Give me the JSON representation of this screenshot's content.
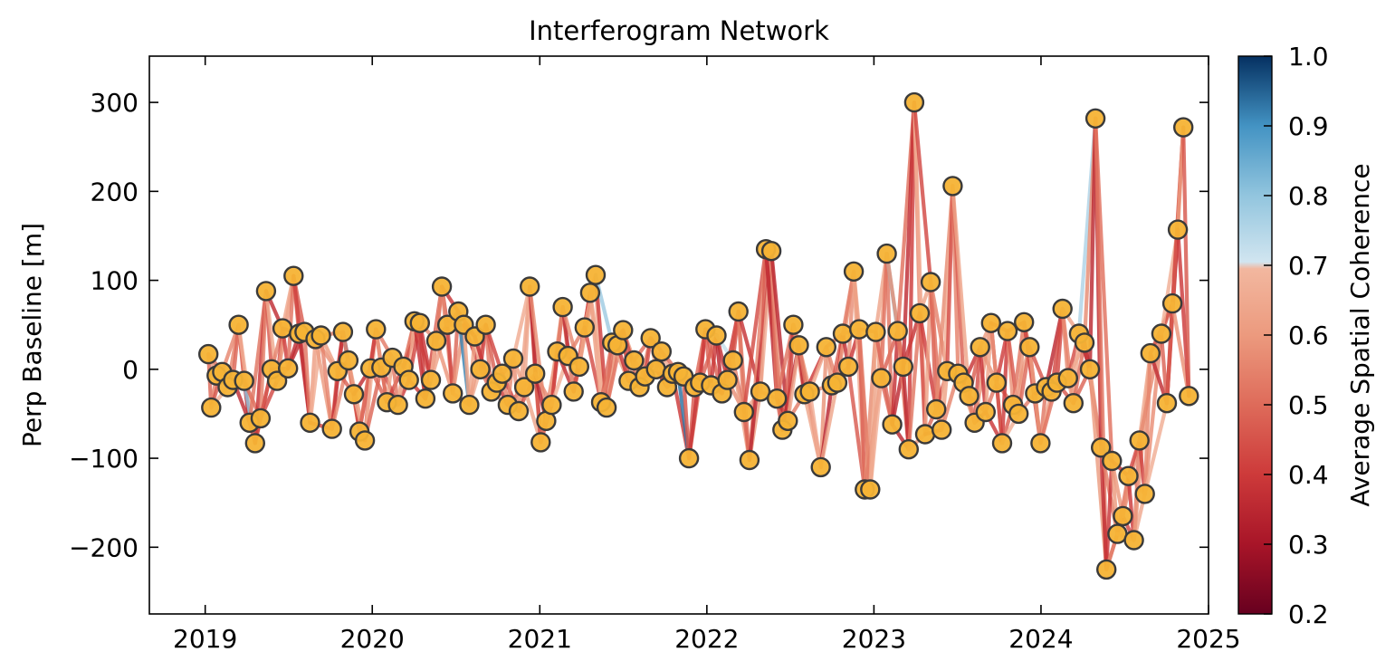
{
  "chart_data": {
    "type": "network",
    "title": "Interferogram Network",
    "xlabel": "",
    "ylabel": "Perp Baseline [m]",
    "x_axis": {
      "type": "date",
      "lim": [
        "2018-09-01",
        "2025-01-01"
      ],
      "ticks": [
        "2019",
        "2020",
        "2021",
        "2022",
        "2023",
        "2024",
        "2025"
      ]
    },
    "y_axis": {
      "lim": [
        -275,
        352
      ],
      "ticks": [
        -200,
        -100,
        0,
        100,
        200,
        300
      ],
      "tick_labels": [
        "−200",
        "−100",
        "0",
        "100",
        "200",
        "300"
      ]
    },
    "colorbar": {
      "label": "Average Spatial Coherence",
      "range": [
        0.2,
        1.0
      ],
      "ticks": [
        "0.2",
        "0.3",
        "0.4",
        "0.5",
        "0.6",
        "0.7",
        "0.8",
        "0.9",
        "1.0"
      ],
      "stops": [
        {
          "v": 0.2,
          "color": "#67001f"
        },
        {
          "v": 0.3,
          "color": "#a81528"
        },
        {
          "v": 0.4,
          "color": "#cd3a3a"
        },
        {
          "v": 0.5,
          "color": "#de6b5a"
        },
        {
          "v": 0.6,
          "color": "#ec9a7e"
        },
        {
          "v": 0.695,
          "color": "#f2b79f"
        },
        {
          "v": 0.705,
          "color": "#d1e5f0"
        },
        {
          "v": 0.8,
          "color": "#92c5de"
        },
        {
          "v": 0.9,
          "color": "#4393c3"
        },
        {
          "v": 1.0,
          "color": "#053061"
        }
      ]
    },
    "acquisitions": [
      {
        "date": "2019-01-08",
        "bperp": 17
      },
      {
        "date": "2019-01-14",
        "bperp": -43
      },
      {
        "date": "2019-01-26",
        "bperp": -7
      },
      {
        "date": "2019-02-07",
        "bperp": -3
      },
      {
        "date": "2019-02-19",
        "bperp": -20
      },
      {
        "date": "2019-03-03",
        "bperp": -12
      },
      {
        "date": "2019-03-15",
        "bperp": 50
      },
      {
        "date": "2019-03-27",
        "bperp": -13
      },
      {
        "date": "2019-04-08",
        "bperp": -60
      },
      {
        "date": "2019-04-20",
        "bperp": -83
      },
      {
        "date": "2019-05-02",
        "bperp": -55
      },
      {
        "date": "2019-05-14",
        "bperp": 88
      },
      {
        "date": "2019-05-26",
        "bperp": 0
      },
      {
        "date": "2019-06-07",
        "bperp": -13
      },
      {
        "date": "2019-06-19",
        "bperp": 46
      },
      {
        "date": "2019-07-01",
        "bperp": 1
      },
      {
        "date": "2019-07-13",
        "bperp": 105
      },
      {
        "date": "2019-07-25",
        "bperp": 40
      },
      {
        "date": "2019-08-06",
        "bperp": 42
      },
      {
        "date": "2019-08-18",
        "bperp": -60
      },
      {
        "date": "2019-08-30",
        "bperp": 34
      },
      {
        "date": "2019-09-11",
        "bperp": 38
      },
      {
        "date": "2019-10-05",
        "bperp": -67
      },
      {
        "date": "2019-10-17",
        "bperp": -2
      },
      {
        "date": "2019-10-29",
        "bperp": 42
      },
      {
        "date": "2019-11-10",
        "bperp": 10
      },
      {
        "date": "2019-11-22",
        "bperp": -28
      },
      {
        "date": "2019-12-04",
        "bperp": -70
      },
      {
        "date": "2019-12-16",
        "bperp": -80
      },
      {
        "date": "2019-12-28",
        "bperp": 1
      },
      {
        "date": "2020-01-09",
        "bperp": 45
      },
      {
        "date": "2020-01-21",
        "bperp": 2
      },
      {
        "date": "2020-02-02",
        "bperp": -37
      },
      {
        "date": "2020-02-14",
        "bperp": 13
      },
      {
        "date": "2020-02-26",
        "bperp": -40
      },
      {
        "date": "2020-03-09",
        "bperp": 3
      },
      {
        "date": "2020-03-21",
        "bperp": -12
      },
      {
        "date": "2020-04-02",
        "bperp": 54
      },
      {
        "date": "2020-04-14",
        "bperp": 52
      },
      {
        "date": "2020-04-26",
        "bperp": -33
      },
      {
        "date": "2020-05-08",
        "bperp": -12
      },
      {
        "date": "2020-05-20",
        "bperp": 32
      },
      {
        "date": "2020-06-01",
        "bperp": 93
      },
      {
        "date": "2020-06-13",
        "bperp": 50
      },
      {
        "date": "2020-06-25",
        "bperp": -27
      },
      {
        "date": "2020-07-07",
        "bperp": 65
      },
      {
        "date": "2020-07-19",
        "bperp": 50
      },
      {
        "date": "2020-07-31",
        "bperp": -40
      },
      {
        "date": "2020-08-12",
        "bperp": 37
      },
      {
        "date": "2020-08-24",
        "bperp": 0
      },
      {
        "date": "2020-09-05",
        "bperp": 50
      },
      {
        "date": "2020-09-17",
        "bperp": -25
      },
      {
        "date": "2020-09-29",
        "bperp": -15
      },
      {
        "date": "2020-10-11",
        "bperp": -5
      },
      {
        "date": "2020-10-23",
        "bperp": -40
      },
      {
        "date": "2020-11-04",
        "bperp": 12
      },
      {
        "date": "2020-11-16",
        "bperp": -47
      },
      {
        "date": "2020-11-28",
        "bperp": -20
      },
      {
        "date": "2020-12-10",
        "bperp": 93
      },
      {
        "date": "2020-12-22",
        "bperp": -5
      },
      {
        "date": "2021-01-03",
        "bperp": -82
      },
      {
        "date": "2021-01-15",
        "bperp": -58
      },
      {
        "date": "2021-01-27",
        "bperp": -40
      },
      {
        "date": "2021-02-08",
        "bperp": 20
      },
      {
        "date": "2021-02-20",
        "bperp": 70
      },
      {
        "date": "2021-03-04",
        "bperp": 15
      },
      {
        "date": "2021-03-16",
        "bperp": -25
      },
      {
        "date": "2021-03-28",
        "bperp": 3
      },
      {
        "date": "2021-04-09",
        "bperp": 47
      },
      {
        "date": "2021-04-21",
        "bperp": 86
      },
      {
        "date": "2021-05-03",
        "bperp": 106
      },
      {
        "date": "2021-05-15",
        "bperp": -37
      },
      {
        "date": "2021-05-27",
        "bperp": -43
      },
      {
        "date": "2021-06-08",
        "bperp": 30
      },
      {
        "date": "2021-06-20",
        "bperp": 27
      },
      {
        "date": "2021-07-02",
        "bperp": 44
      },
      {
        "date": "2021-07-14",
        "bperp": -13
      },
      {
        "date": "2021-07-26",
        "bperp": 10
      },
      {
        "date": "2021-08-07",
        "bperp": -20
      },
      {
        "date": "2021-08-19",
        "bperp": -8
      },
      {
        "date": "2021-08-31",
        "bperp": 35
      },
      {
        "date": "2021-09-12",
        "bperp": 0
      },
      {
        "date": "2021-09-24",
        "bperp": 20
      },
      {
        "date": "2021-10-06",
        "bperp": -20
      },
      {
        "date": "2021-10-18",
        "bperp": -5
      },
      {
        "date": "2021-10-30",
        "bperp": -3
      },
      {
        "date": "2021-11-11",
        "bperp": -8
      },
      {
        "date": "2021-11-23",
        "bperp": -100
      },
      {
        "date": "2021-12-05",
        "bperp": -20
      },
      {
        "date": "2021-12-17",
        "bperp": -15
      },
      {
        "date": "2021-12-29",
        "bperp": 45
      },
      {
        "date": "2022-01-10",
        "bperp": -18
      },
      {
        "date": "2022-01-22",
        "bperp": 38
      },
      {
        "date": "2022-02-03",
        "bperp": -27
      },
      {
        "date": "2022-02-15",
        "bperp": -12
      },
      {
        "date": "2022-02-27",
        "bperp": 10
      },
      {
        "date": "2022-03-11",
        "bperp": 65
      },
      {
        "date": "2022-03-23",
        "bperp": -48
      },
      {
        "date": "2022-04-04",
        "bperp": -102
      },
      {
        "date": "2022-04-28",
        "bperp": -25
      },
      {
        "date": "2022-05-10",
        "bperp": 135
      },
      {
        "date": "2022-05-22",
        "bperp": 133
      },
      {
        "date": "2022-06-03",
        "bperp": -33
      },
      {
        "date": "2022-06-15",
        "bperp": -68
      },
      {
        "date": "2022-06-27",
        "bperp": -58
      },
      {
        "date": "2022-07-09",
        "bperp": 50
      },
      {
        "date": "2022-07-21",
        "bperp": 27
      },
      {
        "date": "2022-08-02",
        "bperp": -28
      },
      {
        "date": "2022-08-14",
        "bperp": -25
      },
      {
        "date": "2022-09-07",
        "bperp": -110
      },
      {
        "date": "2022-09-19",
        "bperp": 25
      },
      {
        "date": "2022-10-01",
        "bperp": -18
      },
      {
        "date": "2022-10-13",
        "bperp": -15
      },
      {
        "date": "2022-10-25",
        "bperp": 40
      },
      {
        "date": "2022-11-06",
        "bperp": 3
      },
      {
        "date": "2022-11-18",
        "bperp": 110
      },
      {
        "date": "2022-11-30",
        "bperp": 45
      },
      {
        "date": "2022-12-12",
        "bperp": -135
      },
      {
        "date": "2022-12-24",
        "bperp": -135
      },
      {
        "date": "2023-01-05",
        "bperp": 42
      },
      {
        "date": "2023-01-17",
        "bperp": -10
      },
      {
        "date": "2023-01-29",
        "bperp": 130
      },
      {
        "date": "2023-02-10",
        "bperp": -62
      },
      {
        "date": "2023-02-22",
        "bperp": 43
      },
      {
        "date": "2023-03-06",
        "bperp": 3
      },
      {
        "date": "2023-03-18",
        "bperp": -90
      },
      {
        "date": "2023-03-30",
        "bperp": 300
      },
      {
        "date": "2023-04-11",
        "bperp": 63
      },
      {
        "date": "2023-04-23",
        "bperp": -73
      },
      {
        "date": "2023-05-05",
        "bperp": 98
      },
      {
        "date": "2023-05-17",
        "bperp": -45
      },
      {
        "date": "2023-05-29",
        "bperp": -68
      },
      {
        "date": "2023-06-10",
        "bperp": -2
      },
      {
        "date": "2023-06-22",
        "bperp": 206
      },
      {
        "date": "2023-07-04",
        "bperp": -5
      },
      {
        "date": "2023-07-16",
        "bperp": -15
      },
      {
        "date": "2023-07-28",
        "bperp": -30
      },
      {
        "date": "2023-08-09",
        "bperp": -60
      },
      {
        "date": "2023-08-21",
        "bperp": 25
      },
      {
        "date": "2023-09-02",
        "bperp": -48
      },
      {
        "date": "2023-09-14",
        "bperp": 52
      },
      {
        "date": "2023-09-26",
        "bperp": -15
      },
      {
        "date": "2023-10-08",
        "bperp": -83
      },
      {
        "date": "2023-10-20",
        "bperp": 43
      },
      {
        "date": "2023-11-01",
        "bperp": -40
      },
      {
        "date": "2023-11-13",
        "bperp": -50
      },
      {
        "date": "2023-11-25",
        "bperp": 53
      },
      {
        "date": "2023-12-07",
        "bperp": 25
      },
      {
        "date": "2023-12-19",
        "bperp": -27
      },
      {
        "date": "2023-12-31",
        "bperp": -83
      },
      {
        "date": "2024-01-12",
        "bperp": -20
      },
      {
        "date": "2024-01-24",
        "bperp": -25
      },
      {
        "date": "2024-02-05",
        "bperp": -15
      },
      {
        "date": "2024-02-17",
        "bperp": 68
      },
      {
        "date": "2024-02-29",
        "bperp": -10
      },
      {
        "date": "2024-03-12",
        "bperp": -38
      },
      {
        "date": "2024-03-24",
        "bperp": 40
      },
      {
        "date": "2024-04-05",
        "bperp": 30
      },
      {
        "date": "2024-04-17",
        "bperp": 0
      },
      {
        "date": "2024-04-29",
        "bperp": 282
      },
      {
        "date": "2024-05-11",
        "bperp": -88
      },
      {
        "date": "2024-05-23",
        "bperp": -225
      },
      {
        "date": "2024-06-04",
        "bperp": -103
      },
      {
        "date": "2024-06-16",
        "bperp": -185
      },
      {
        "date": "2024-06-28",
        "bperp": -165
      },
      {
        "date": "2024-07-10",
        "bperp": -120
      },
      {
        "date": "2024-07-22",
        "bperp": -192
      },
      {
        "date": "2024-08-03",
        "bperp": -80
      },
      {
        "date": "2024-08-15",
        "bperp": -140
      },
      {
        "date": "2024-08-27",
        "bperp": 18
      },
      {
        "date": "2024-09-20",
        "bperp": 40
      },
      {
        "date": "2024-10-02",
        "bperp": -38
      },
      {
        "date": "2024-10-14",
        "bperp": 74
      },
      {
        "date": "2024-10-26",
        "bperp": 157
      },
      {
        "date": "2024-11-07",
        "bperp": 272
      },
      {
        "date": "2024-11-19",
        "bperp": -30
      }
    ]
  }
}
